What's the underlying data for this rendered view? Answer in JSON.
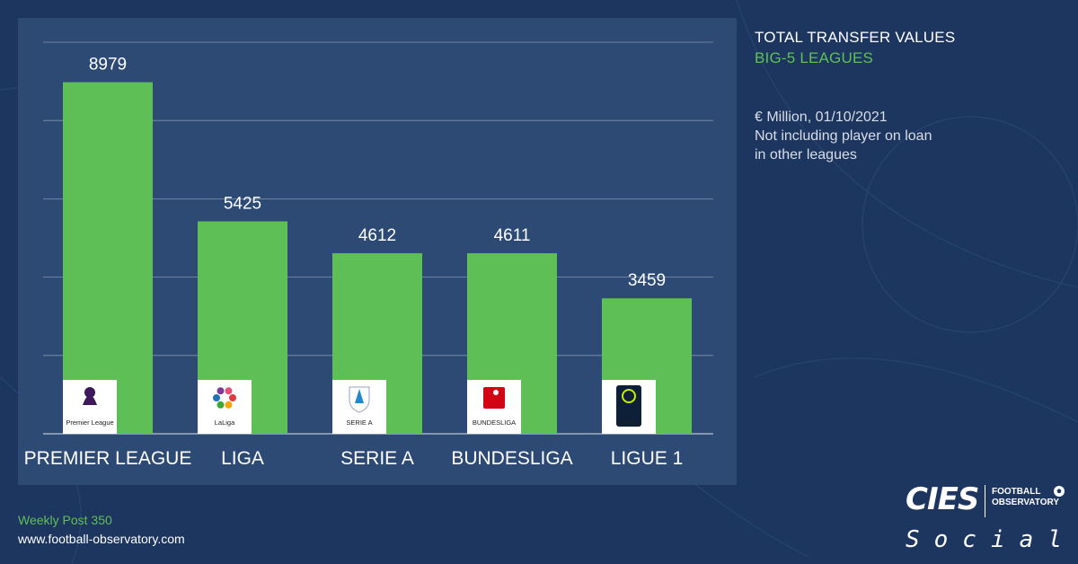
{
  "header": {
    "title": "TOTAL TRANSFER VALUES",
    "subtitle": "BIG-5 LEAGUES"
  },
  "notes": {
    "line1": "€ Million, 01/10/2021",
    "line2": "Not including player on loan",
    "line3": "in other leagues"
  },
  "footer": {
    "post": "Weekly Post 350",
    "url": "www.football-observatory.com"
  },
  "brand": {
    "logo": "CIES",
    "sub1": "FOOTBALL",
    "sub2": "OBSERVATORY",
    "social": "Social"
  },
  "colors": {
    "background": "#1d3660",
    "panel": "#2c4a73",
    "bar": "#5fbf57",
    "accent": "#5fbf57"
  },
  "chart_data": {
    "type": "bar",
    "categories": [
      "PREMIER LEAGUE",
      "LIGA",
      "SERIE A",
      "BUNDESLIGA",
      "LIGUE 1"
    ],
    "values": [
      8979,
      5425,
      4612,
      4611,
      3459
    ],
    "logos": [
      {
        "text": "Premier League",
        "icon": "premier-league-lion-icon"
      },
      {
        "text": "LaLiga",
        "icon": "laliga-badge-icon"
      },
      {
        "text": "SERIE A",
        "icon": "serie-a-shield-icon"
      },
      {
        "text": "BUNDESLIGA",
        "icon": "bundesliga-player-icon"
      },
      {
        "text": "LIGUE 1",
        "icon": "ligue-1-badge-icon"
      }
    ],
    "ylim": [
      0,
      10000
    ],
    "grid": true,
    "legend": "none"
  }
}
